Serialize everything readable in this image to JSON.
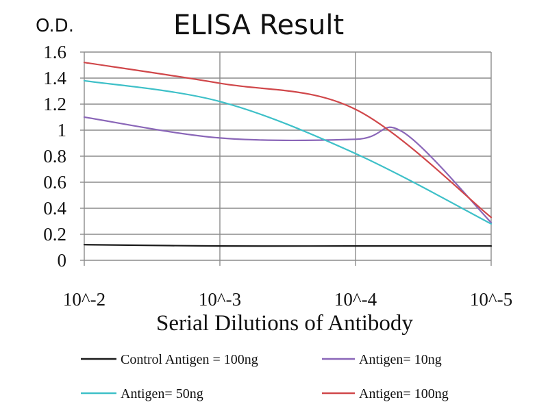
{
  "chart_data": {
    "type": "line",
    "title": "ELISA Result",
    "ylabel": "O.D.",
    "xlabel": "Serial Dilutions of Antibody",
    "categories": [
      "10^-2",
      "10^-3",
      "10^-4",
      "10^-5"
    ],
    "yticks": [
      "0",
      "0.2",
      "0.4",
      "0.6",
      "0.8",
      "1",
      "1.2",
      "1.4",
      "1.6"
    ],
    "ylim": [
      0,
      1.6
    ],
    "grid": true,
    "legend_position": "bottom",
    "series": [
      {
        "name": "Control Antigen = 100ng",
        "color": "#1a1a1a",
        "values": [
          0.12,
          0.11,
          0.11,
          0.11
        ]
      },
      {
        "name": "Antigen= 10ng",
        "color": "#8a66b8",
        "values": [
          1.1,
          0.94,
          0.93,
          0.29
        ]
      },
      {
        "name": "Antigen= 50ng",
        "color": "#3ec0c8",
        "values": [
          1.38,
          1.22,
          0.82,
          0.28
        ]
      },
      {
        "name": "Antigen= 100ng",
        "color": "#d0474a",
        "values": [
          1.52,
          1.36,
          1.16,
          0.33
        ]
      }
    ],
    "secondary_points": {
      "Antigen= 10ng": {
        "x": 2.35,
        "y": 0.985
      }
    }
  }
}
